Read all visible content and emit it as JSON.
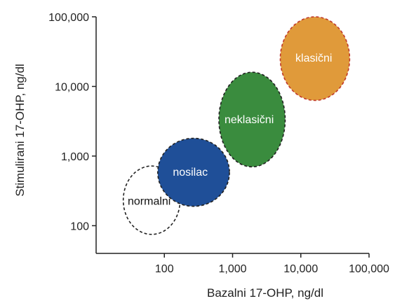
{
  "chart_data": {
    "type": "scatter",
    "title": "",
    "xlabel": "Bazalni 17-OHP, ng/dl",
    "ylabel": "Stimulirani 17-OHP, ng/dl",
    "xscale": "log",
    "yscale": "log",
    "xlim": [
      10,
      100000
    ],
    "ylim": [
      40,
      100000
    ],
    "grid": false,
    "xticks": [
      {
        "value": 100,
        "label": "100"
      },
      {
        "value": 1000,
        "label": "1,000"
      },
      {
        "value": 10000,
        "label": "10,000"
      },
      {
        "value": 100000,
        "label": "100,000"
      }
    ],
    "yticks": [
      {
        "value": 100,
        "label": "100"
      },
      {
        "value": 1000,
        "label": "1,000"
      },
      {
        "value": 10000,
        "label": "10,000"
      },
      {
        "value": 100000,
        "label": "100,000"
      }
    ],
    "regions": [
      {
        "label": "normalni",
        "x_center": 60,
        "y_center": 230,
        "x_range": [
          25,
          170
        ],
        "y_range": [
          75,
          720
        ],
        "fill": "none",
        "stroke": "#222222",
        "text_color": "#111111"
      },
      {
        "label": "nosilac",
        "x_center": 240,
        "y_center": 600,
        "x_range": [
          80,
          900
        ],
        "y_range": [
          190,
          1800
        ],
        "fill": "#1f4f98",
        "stroke": "#222222",
        "text_color": "#ffffff"
      },
      {
        "label": "neklasični",
        "x_center": 1750,
        "y_center": 3400,
        "x_range": [
          630,
          5900
        ],
        "y_range": [
          700,
          16000
        ],
        "fill": "#3a8c3e",
        "stroke": "#222222",
        "text_color": "#ffffff"
      },
      {
        "label": "klasični",
        "x_center": 15500,
        "y_center": 26000,
        "x_range": [
          5000,
          52000
        ],
        "y_range": [
          6300,
          100000
        ],
        "fill": "#e09a3a",
        "stroke": "#c0392b",
        "text_color": "#ffffff"
      }
    ]
  }
}
